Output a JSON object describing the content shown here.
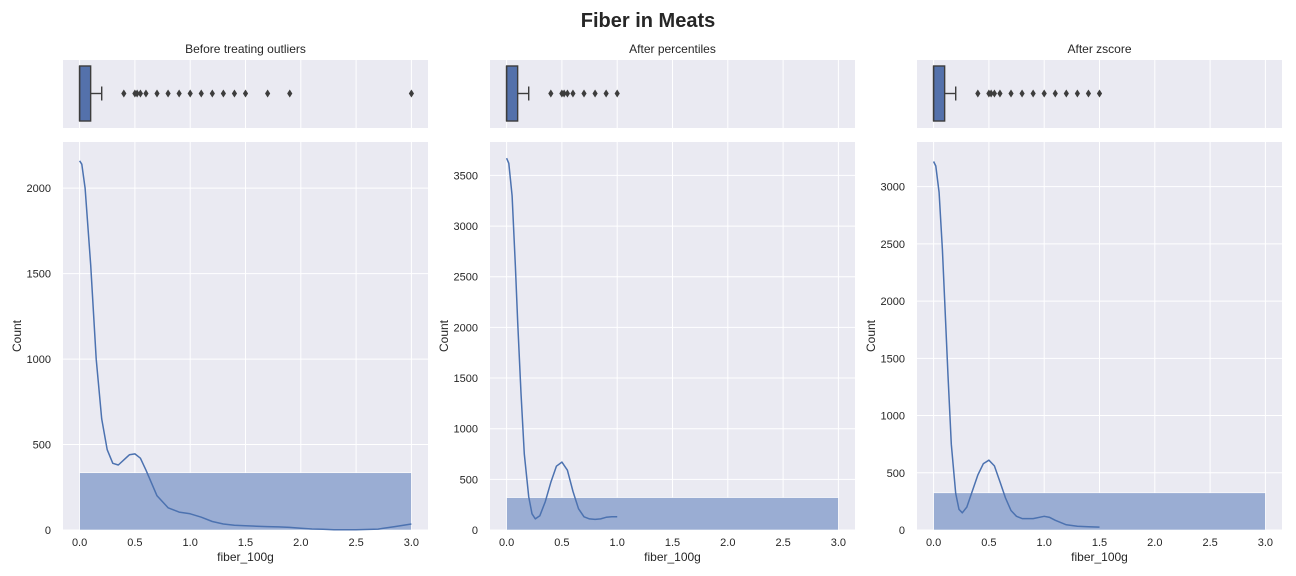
{
  "title": "Fiber in Meats",
  "colors": {
    "panel_bg": "#eaeaf2",
    "grid": "#ffffff",
    "box_fill": "#5471ab",
    "box_edge": "#3d3d3d",
    "hist_fill": "#9aadd3",
    "kde": "#4c72b0",
    "outlier": "#3d3d3d"
  },
  "chart_data": [
    {
      "type": "histogram+kde",
      "title": "Before treating outliers",
      "xlabel": "fiber_100g",
      "ylabel": "Count",
      "xlim": [
        -0.15,
        3.15
      ],
      "ylim": [
        0,
        2270
      ],
      "xticks": [
        0.0,
        0.5,
        1.0,
        1.5,
        2.0,
        2.5,
        3.0
      ],
      "yticks": [
        0,
        500,
        1000,
        1500,
        2000
      ],
      "bins": [
        {
          "x0": 0.0,
          "x1": 3.0,
          "count": 335
        }
      ],
      "kde": [
        [
          0.0,
          2160
        ],
        [
          0.02,
          2140
        ],
        [
          0.05,
          2000
        ],
        [
          0.1,
          1550
        ],
        [
          0.15,
          1000
        ],
        [
          0.2,
          650
        ],
        [
          0.25,
          470
        ],
        [
          0.3,
          390
        ],
        [
          0.35,
          380
        ],
        [
          0.4,
          410
        ],
        [
          0.45,
          440
        ],
        [
          0.5,
          445
        ],
        [
          0.55,
          420
        ],
        [
          0.6,
          350
        ],
        [
          0.7,
          200
        ],
        [
          0.8,
          130
        ],
        [
          0.9,
          105
        ],
        [
          1.0,
          95
        ],
        [
          1.1,
          75
        ],
        [
          1.2,
          50
        ],
        [
          1.3,
          35
        ],
        [
          1.4,
          28
        ],
        [
          1.5,
          25
        ],
        [
          1.6,
          22
        ],
        [
          1.7,
          20
        ],
        [
          1.8,
          18
        ],
        [
          1.9,
          15
        ],
        [
          2.0,
          10
        ],
        [
          2.1,
          6
        ],
        [
          2.2,
          4
        ],
        [
          2.3,
          2
        ],
        [
          2.5,
          2
        ],
        [
          2.7,
          5
        ],
        [
          2.85,
          20
        ],
        [
          3.0,
          35
        ]
      ],
      "box": {
        "q1": 0.0,
        "median": 0.0,
        "q3": 0.1,
        "whisker_low": 0.0,
        "whisker_high": 0.2,
        "outliers": [
          0.4,
          0.5,
          0.52,
          0.55,
          0.6,
          0.7,
          0.8,
          0.9,
          1.0,
          1.1,
          1.2,
          1.3,
          1.4,
          1.5,
          1.7,
          1.9,
          3.0
        ]
      }
    },
    {
      "type": "histogram+kde",
      "title": "After percentiles",
      "xlabel": "fiber_100g",
      "ylabel": "Count",
      "xlim": [
        -0.15,
        3.15
      ],
      "ylim": [
        0,
        3830
      ],
      "xticks": [
        0.0,
        0.5,
        1.0,
        1.5,
        2.0,
        2.5,
        3.0
      ],
      "yticks": [
        0,
        500,
        1000,
        1500,
        2000,
        2500,
        3000,
        3500
      ],
      "bins": [
        {
          "x0": 0.0,
          "x1": 3.0,
          "count": 320
        }
      ],
      "kde": [
        [
          0.0,
          3670
        ],
        [
          0.02,
          3620
        ],
        [
          0.05,
          3300
        ],
        [
          0.08,
          2600
        ],
        [
          0.1,
          2050
        ],
        [
          0.13,
          1350
        ],
        [
          0.16,
          750
        ],
        [
          0.2,
          330
        ],
        [
          0.23,
          160
        ],
        [
          0.26,
          110
        ],
        [
          0.3,
          140
        ],
        [
          0.35,
          280
        ],
        [
          0.4,
          470
        ],
        [
          0.45,
          630
        ],
        [
          0.5,
          670
        ],
        [
          0.55,
          590
        ],
        [
          0.6,
          380
        ],
        [
          0.65,
          210
        ],
        [
          0.7,
          130
        ],
        [
          0.75,
          110
        ],
        [
          0.8,
          105
        ],
        [
          0.85,
          110
        ],
        [
          0.9,
          125
        ],
        [
          0.95,
          130
        ],
        [
          1.0,
          130
        ]
      ],
      "box": {
        "q1": 0.0,
        "median": 0.0,
        "q3": 0.1,
        "whisker_low": 0.0,
        "whisker_high": 0.2,
        "outliers": [
          0.4,
          0.5,
          0.52,
          0.55,
          0.6,
          0.7,
          0.8,
          0.9,
          1.0
        ]
      }
    },
    {
      "type": "histogram+kde",
      "title": "After zscore",
      "xlabel": "fiber_100g",
      "ylabel": "Count",
      "xlim": [
        -0.15,
        3.15
      ],
      "ylim": [
        0,
        3390
      ],
      "xticks": [
        0.0,
        0.5,
        1.0,
        1.5,
        2.0,
        2.5,
        3.0
      ],
      "yticks": [
        0,
        500,
        1000,
        1500,
        2000,
        2500,
        3000
      ],
      "bins": [
        {
          "x0": 0.0,
          "x1": 3.0,
          "count": 325
        }
      ],
      "kde": [
        [
          0.0,
          3220
        ],
        [
          0.02,
          3180
        ],
        [
          0.05,
          2950
        ],
        [
          0.08,
          2450
        ],
        [
          0.1,
          2000
        ],
        [
          0.13,
          1350
        ],
        [
          0.16,
          750
        ],
        [
          0.2,
          320
        ],
        [
          0.23,
          180
        ],
        [
          0.26,
          150
        ],
        [
          0.3,
          200
        ],
        [
          0.35,
          340
        ],
        [
          0.4,
          480
        ],
        [
          0.45,
          580
        ],
        [
          0.5,
          610
        ],
        [
          0.55,
          560
        ],
        [
          0.6,
          420
        ],
        [
          0.65,
          280
        ],
        [
          0.7,
          170
        ],
        [
          0.75,
          120
        ],
        [
          0.8,
          100
        ],
        [
          0.9,
          100
        ],
        [
          1.0,
          120
        ],
        [
          1.05,
          110
        ],
        [
          1.1,
          85
        ],
        [
          1.2,
          45
        ],
        [
          1.3,
          32
        ],
        [
          1.4,
          28
        ],
        [
          1.5,
          25
        ]
      ],
      "box": {
        "q1": 0.0,
        "median": 0.0,
        "q3": 0.1,
        "whisker_low": 0.0,
        "whisker_high": 0.2,
        "outliers": [
          0.4,
          0.5,
          0.52,
          0.55,
          0.6,
          0.7,
          0.8,
          0.9,
          1.0,
          1.1,
          1.2,
          1.3,
          1.4,
          1.5
        ]
      }
    }
  ]
}
